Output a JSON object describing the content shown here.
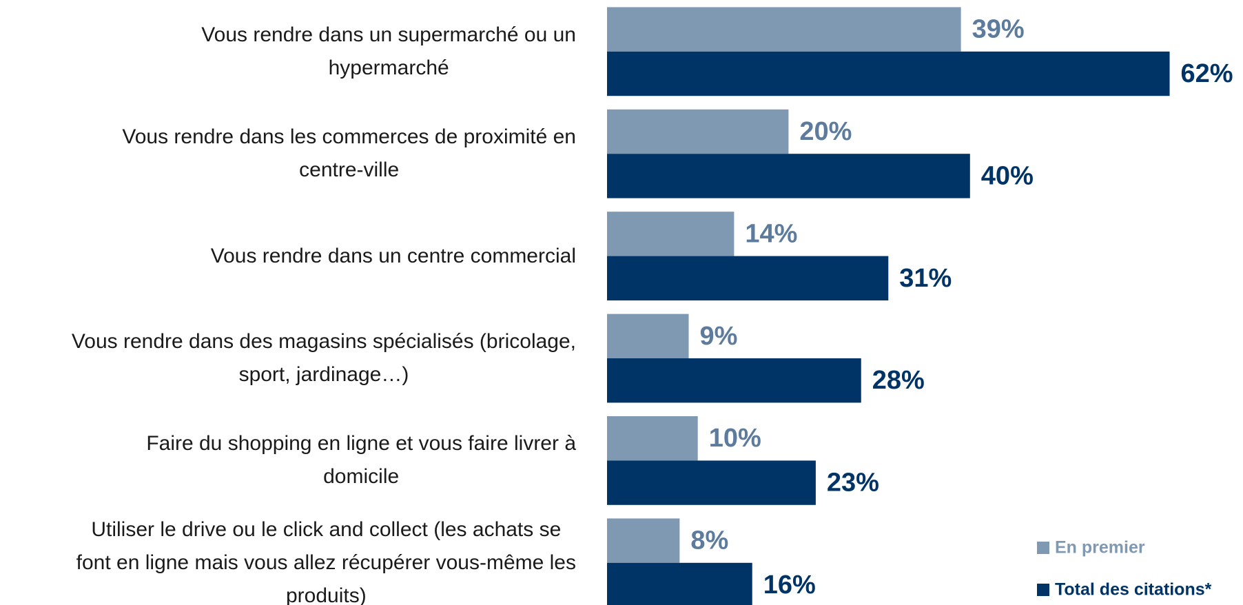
{
  "chart_data": {
    "type": "bar",
    "orientation": "horizontal",
    "categories": [
      "Vous rendre dans un supermarché ou un\nhypermarché",
      "Vous rendre dans les commerces de proximité en\ncentre-ville",
      "Vous rendre dans un centre commercial",
      "Vous rendre dans des magasins spécialisés (bricolage,\nsport, jardinage…)",
      "Faire du shopping en ligne et vous faire livrer à\ndomicile",
      "Utiliser le drive ou le click and collect (les achats se\nfont en ligne mais vous allez récupérer vous-même les\nproduits)"
    ],
    "series": [
      {
        "name": "En premier",
        "color": "#7f99b3",
        "values": [
          39,
          20,
          14,
          9,
          10,
          8
        ],
        "value_labels": [
          "39%",
          "20%",
          "14%",
          "9%",
          "10%",
          "8%"
        ]
      },
      {
        "name": "Total des citations*",
        "color": "#003366",
        "values": [
          62,
          40,
          31,
          28,
          23,
          16
        ],
        "value_labels": [
          "62%",
          "40%",
          "31%",
          "28%",
          "23%",
          "16%"
        ]
      }
    ],
    "legend": "bottom-right"
  }
}
